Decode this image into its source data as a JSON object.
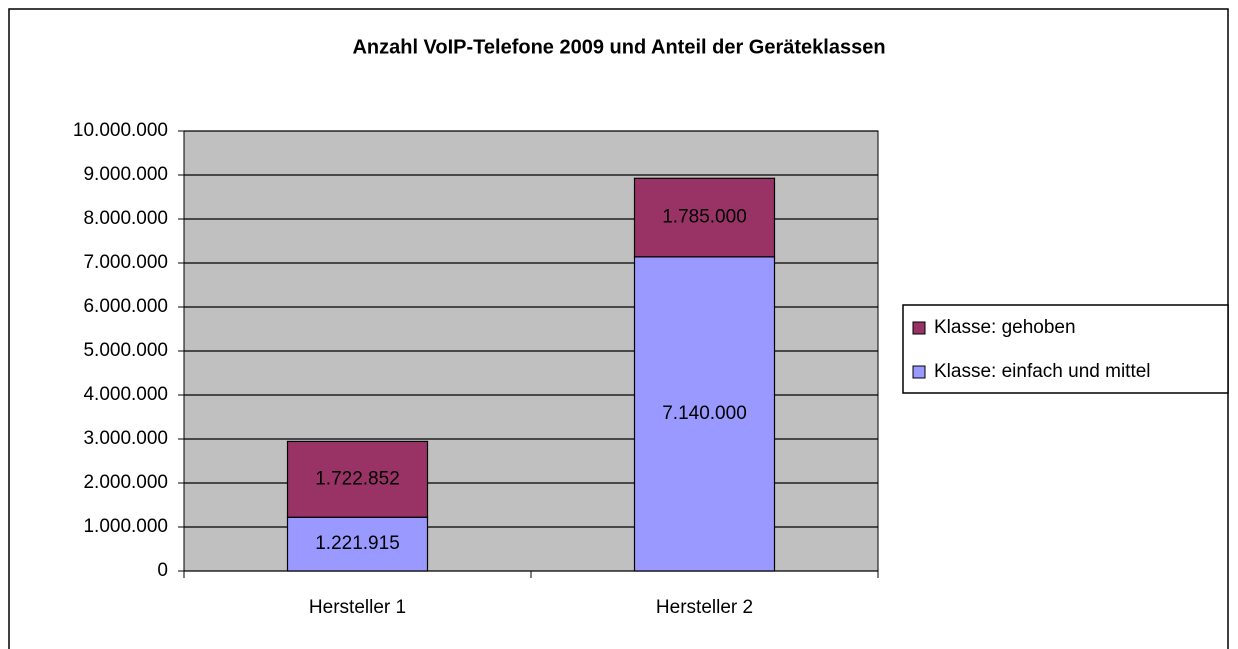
{
  "chart_data": {
    "type": "stacked_bar",
    "title": "Anzahl VoIP-Telefone 2009 und Anteil der Geräteklassen",
    "categories": [
      "Hersteller 1",
      "Hersteller 2"
    ],
    "series": [
      {
        "name": "Klasse: einfach und mittel",
        "color": "#9999ff",
        "values": [
          1221915,
          7140000
        ],
        "value_labels": [
          "1.221.915",
          "7.140.000"
        ]
      },
      {
        "name": "Klasse: gehoben",
        "color": "#993366",
        "values": [
          1722852,
          1785000
        ],
        "value_labels": [
          "1.722.852",
          "1.785.000"
        ]
      }
    ],
    "ylim": [
      0,
      10000000
    ],
    "yticks": [
      0,
      {
        "value": 1000000,
        "label": "1.000.000"
      },
      {
        "value": 2000000,
        "label": "2.000.000"
      },
      {
        "value": 3000000,
        "label": "3.000.000"
      },
      {
        "value": 4000000,
        "label": "4.000.000"
      },
      {
        "value": 5000000,
        "label": "5.000.000"
      },
      {
        "value": 6000000,
        "label": "6.000.000"
      },
      {
        "value": 7000000,
        "label": "7.000.000"
      },
      {
        "value": 8000000,
        "label": "8.000.000"
      },
      {
        "value": 9000000,
        "label": "9.000.000"
      },
      {
        "value": 10000000,
        "label": "10.000.000"
      }
    ],
    "grid": true,
    "legend": "right"
  }
}
